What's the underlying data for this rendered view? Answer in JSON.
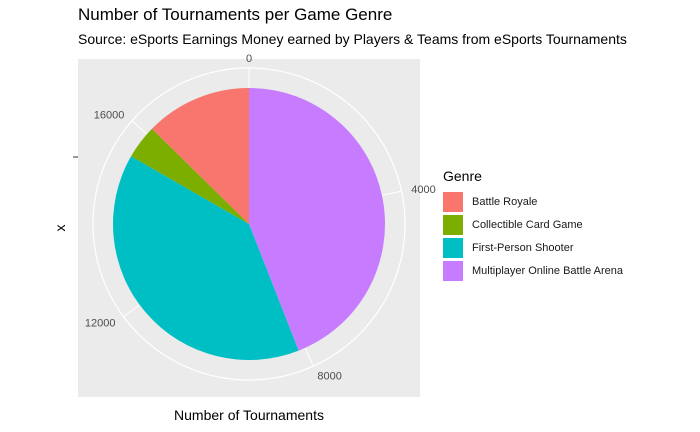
{
  "chart_data": {
    "type": "pie",
    "title": "Number of Tournaments per Game Genre",
    "subtitle": "Source: eSports Earnings Money earned by Players & Teams from eSports Tournaments",
    "xlabel": "Number of Tournaments",
    "ylabel": "x",
    "legend_title": "Genre",
    "legend_position": "right",
    "grid": true,
    "total": 18500,
    "tick_values": [
      0,
      4000,
      8000,
      12000,
      16000
    ],
    "tick_labels": [
      "0",
      "4000",
      "8000",
      "12000",
      "16000"
    ],
    "categories": [
      "Battle Royale",
      "Collectible Card Game",
      "First-Person Shooter",
      "Multiplayer Online Battle Arena"
    ],
    "values": [
      2340,
      750,
      7260,
      8150
    ],
    "colors": [
      "#F8766D",
      "#7CAE00",
      "#00BFC4",
      "#C77CFF"
    ],
    "draw_order": [
      3,
      2,
      1,
      0
    ]
  }
}
